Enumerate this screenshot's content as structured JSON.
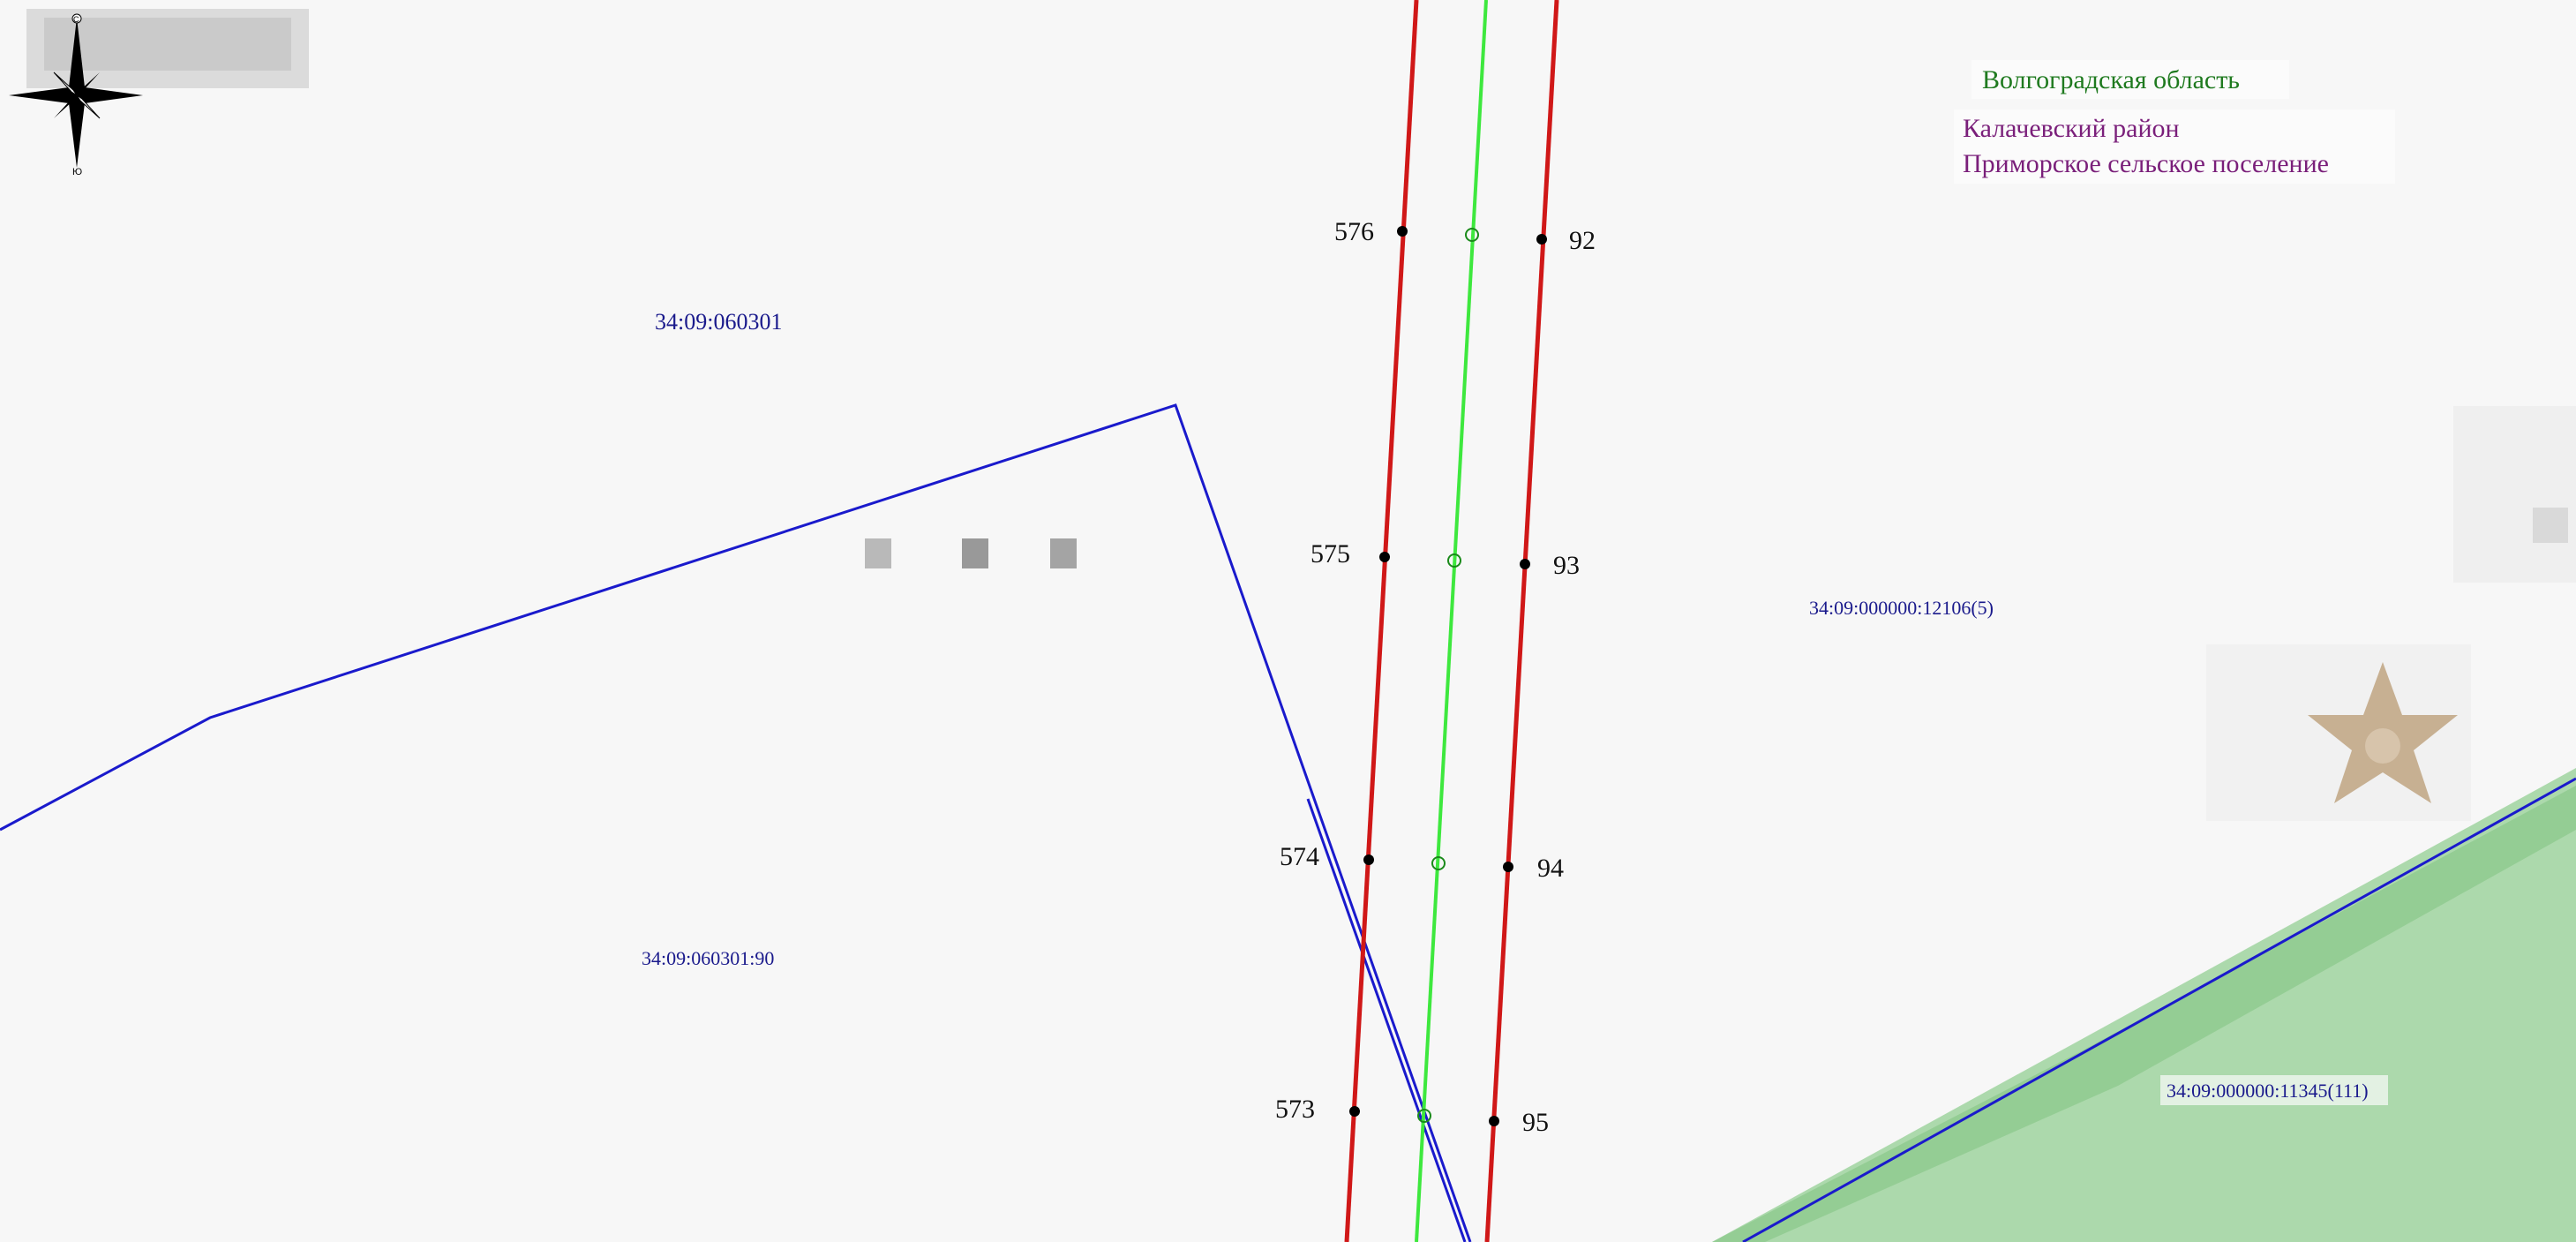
{
  "map": {
    "background_color": "#f7f7f7",
    "colors": {
      "boundary_red": "#d01818",
      "axis_green": "#3ee83e",
      "parcel_blue": "#1a1acc",
      "vegetation": "#9fd49f",
      "label_region": "#1f7a1f",
      "label_admin": "#7a1f7a",
      "label_parcel": "#1a1a8c"
    },
    "compass": {
      "north_label": "С",
      "south_label": "Ю"
    },
    "admin_labels": {
      "region": "Волгоградская область",
      "district": "Калачевский район",
      "settlement": "Приморское сельское поселение"
    },
    "parcel_labels": {
      "quarter": "34:09:060301",
      "parcel_90": "34:09:060301:90",
      "parcel_12106": "34:09:000000:12106(5)",
      "parcel_11345": "34:09:000000:11345(111)"
    },
    "points_left": [
      "576",
      "575",
      "574",
      "573"
    ],
    "points_right": [
      "92",
      "93",
      "94",
      "95"
    ]
  }
}
